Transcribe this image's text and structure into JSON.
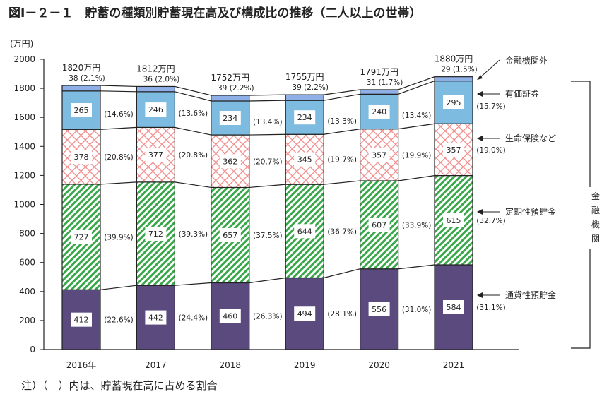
{
  "chart_data": {
    "type": "bar",
    "stacked": true,
    "title": "図Ⅰ－２－１　貯蓄の種類別貯蓄現在高及び構成比の推移（二人以上の世帯）",
    "ylabel": "(万円)",
    "ylim": [
      0,
      2000
    ],
    "yticks": [
      0,
      200,
      400,
      600,
      800,
      1000,
      1200,
      1400,
      1600,
      1800,
      2000
    ],
    "categories": [
      "2016年",
      "2017",
      "2018",
      "2019",
      "2020",
      "2021"
    ],
    "totals": [
      "1820万円",
      "1812万円",
      "1752万円",
      "1755万円",
      "1791万円",
      "1880万円"
    ],
    "series": [
      {
        "name": "通貨性預貯金",
        "color": "#5a4a7e",
        "pattern": "solid",
        "values": [
          412,
          442,
          460,
          494,
          556,
          584
        ],
        "percents": [
          "(22.6%)",
          "(24.4%)",
          "(26.3%)",
          "(28.1%)",
          "(31.0%)",
          "(31.1%)"
        ]
      },
      {
        "name": "定期性預貯金",
        "color": "#3aa84a",
        "pattern": "diagonal-stripes",
        "values": [
          727,
          712,
          657,
          644,
          607,
          615
        ],
        "percents": [
          "(39.9%)",
          "(39.3%)",
          "(37.5%)",
          "(36.7%)",
          "(33.9%)",
          "(32.7%)"
        ]
      },
      {
        "name": "生命保険など",
        "color": "#f08a8a",
        "pattern": "crosshatch",
        "values": [
          378,
          377,
          362,
          345,
          357,
          357
        ],
        "percents": [
          "(20.8%)",
          "(20.8%)",
          "(20.7%)",
          "(19.7%)",
          "(19.9%)",
          "(19.0%)"
        ]
      },
      {
        "name": "有価証券",
        "color": "#7dbbe0",
        "pattern": "solid",
        "values": [
          265,
          246,
          234,
          234,
          240,
          295
        ],
        "percents": [
          "(14.6%)",
          "(13.6%)",
          "(13.4%)",
          "(13.3%)",
          "(13.4%)",
          "(15.7%)"
        ]
      },
      {
        "name": "金融機関外",
        "color": "#8fb0e6",
        "pattern": "solid",
        "values": [
          38,
          36,
          39,
          39,
          31,
          29
        ],
        "percents": [
          "(2.1%)",
          "(2.0%)",
          "(2.2%)",
          "(2.2%)",
          "(1.7%)",
          "(1.5%)"
        ]
      }
    ],
    "bracket_label": "金融機関",
    "grid": false,
    "legend": "right"
  },
  "note": "注）（　）内は、貯蓄現在高に占める割合"
}
